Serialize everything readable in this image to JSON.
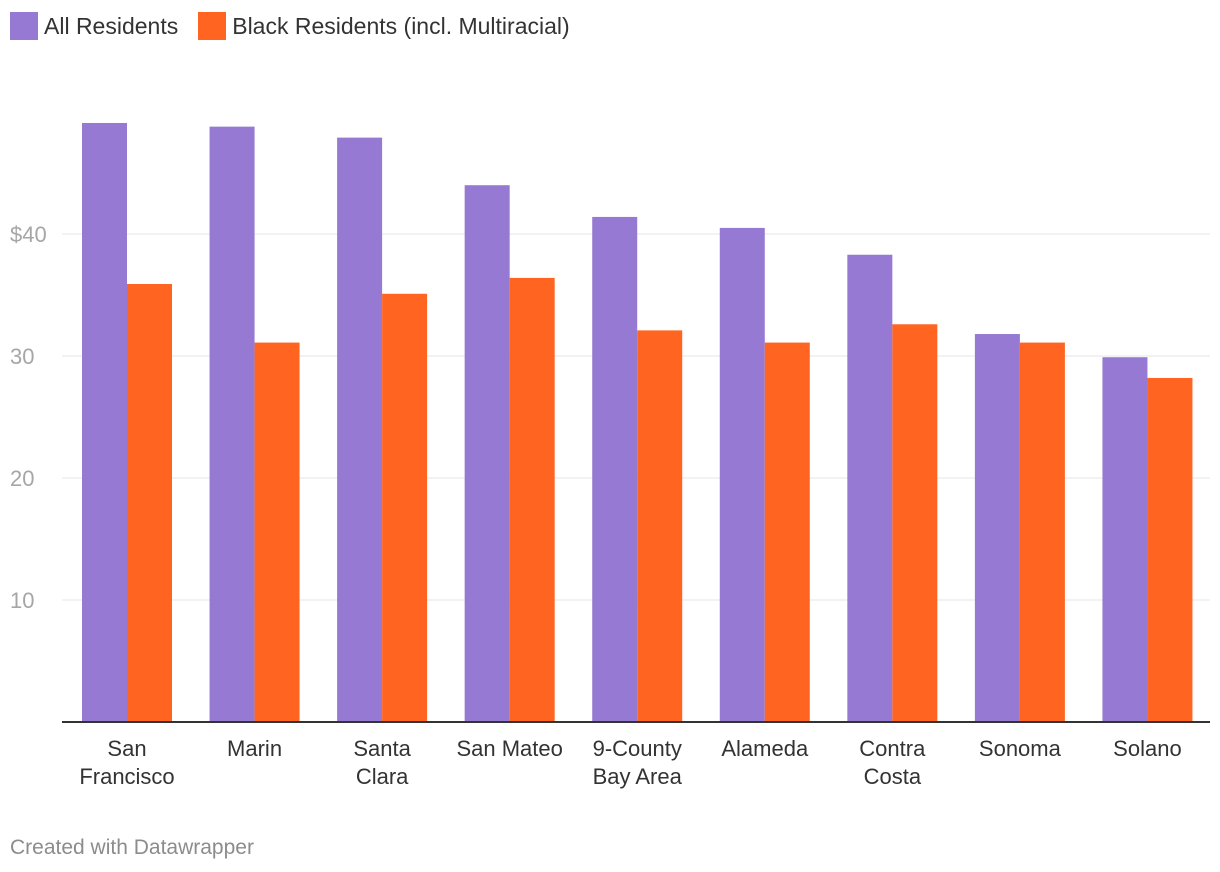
{
  "chart_data": {
    "type": "bar",
    "title": "",
    "xlabel": "",
    "ylabel": "",
    "ylim": [
      0,
      49
    ],
    "grid": true,
    "legend_position": "top-left",
    "y_ticks": [
      {
        "value": 10,
        "label": "10"
      },
      {
        "value": 20,
        "label": "20"
      },
      {
        "value": 30,
        "label": "30"
      },
      {
        "value": 40,
        "label": "$40"
      }
    ],
    "categories": [
      [
        "San",
        "Francisco"
      ],
      [
        "Marin"
      ],
      [
        "Santa",
        "Clara"
      ],
      [
        "San Mateo"
      ],
      [
        "9-County",
        "Bay Area"
      ],
      [
        "Alameda"
      ],
      [
        "Contra",
        "Costa"
      ],
      [
        "Sonoma"
      ],
      [
        "Solano"
      ]
    ],
    "series": [
      {
        "name": "All Residents",
        "color": "#9579d3",
        "values": [
          49.1,
          48.8,
          47.9,
          44.0,
          41.4,
          40.5,
          38.3,
          31.8,
          29.9
        ]
      },
      {
        "name": "Black Residents (incl. Multiracial)",
        "color": "#ff6420",
        "values": [
          35.9,
          31.1,
          35.1,
          36.4,
          32.1,
          31.1,
          32.6,
          31.1,
          28.2
        ]
      }
    ]
  },
  "footer": {
    "text": "Created with Datawrapper"
  }
}
